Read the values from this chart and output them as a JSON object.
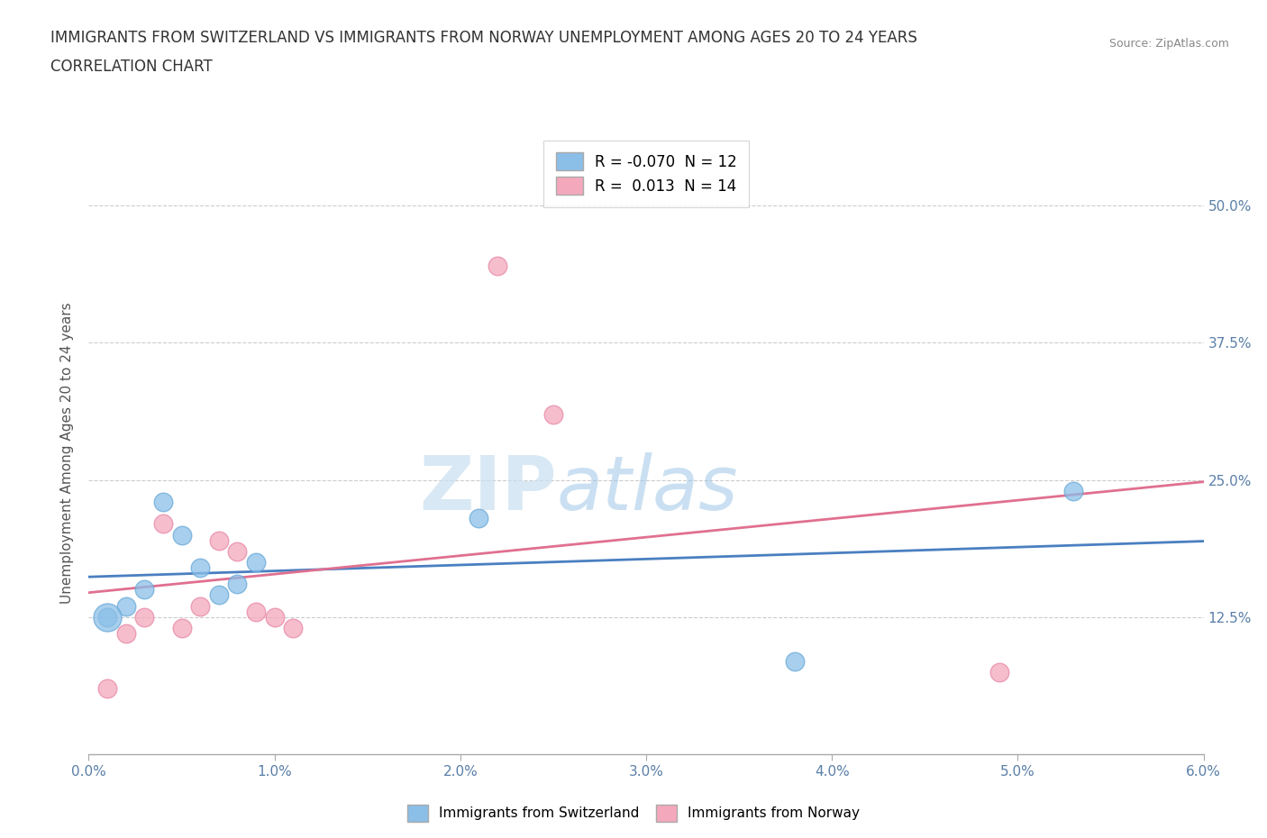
{
  "title_line1": "IMMIGRANTS FROM SWITZERLAND VS IMMIGRANTS FROM NORWAY UNEMPLOYMENT AMONG AGES 20 TO 24 YEARS",
  "title_line2": "CORRELATION CHART",
  "source": "Source: ZipAtlas.com",
  "ylabel": "Unemployment Among Ages 20 to 24 years",
  "xlim": [
    0.0,
    0.06
  ],
  "ylim": [
    0.0,
    0.55
  ],
  "xticks": [
    0.0,
    0.01,
    0.02,
    0.03,
    0.04,
    0.05,
    0.06
  ],
  "xtick_labels": [
    "0.0%",
    "1.0%",
    "2.0%",
    "3.0%",
    "4.0%",
    "5.0%",
    "6.0%"
  ],
  "yticks": [
    0.0,
    0.125,
    0.25,
    0.375,
    0.5
  ],
  "ytick_labels_right": [
    "",
    "12.5%",
    "25.0%",
    "37.5%",
    "50.0%"
  ],
  "grid_color": "#cccccc",
  "background_color": "#ffffff",
  "watermark_zip": "ZIP",
  "watermark_atlas": "atlas",
  "switzerland_color": "#8bbfe8",
  "switzerland_edge": "#6aaad8",
  "norway_color": "#f4a8bb",
  "norway_edge": "#e888a8",
  "switzerland_line_color": "#4a7fc1",
  "norway_line_color": "#e07090",
  "switzerland_R": -0.07,
  "switzerland_N": 12,
  "norway_R": 0.013,
  "norway_N": 14,
  "switzerland_scatter_x": [
    0.001,
    0.002,
    0.003,
    0.004,
    0.005,
    0.006,
    0.007,
    0.008,
    0.009,
    0.021,
    0.038,
    0.053
  ],
  "switzerland_scatter_y": [
    0.125,
    0.135,
    0.15,
    0.23,
    0.2,
    0.17,
    0.145,
    0.155,
    0.175,
    0.215,
    0.085,
    0.24
  ],
  "norway_scatter_x": [
    0.001,
    0.002,
    0.003,
    0.004,
    0.005,
    0.006,
    0.007,
    0.008,
    0.009,
    0.01,
    0.011,
    0.022,
    0.025,
    0.049
  ],
  "norway_scatter_y": [
    0.06,
    0.11,
    0.125,
    0.21,
    0.115,
    0.135,
    0.195,
    0.185,
    0.13,
    0.125,
    0.115,
    0.445,
    0.31,
    0.075
  ],
  "legend_bottom_labels": [
    "Immigrants from Switzerland",
    "Immigrants from Norway"
  ]
}
